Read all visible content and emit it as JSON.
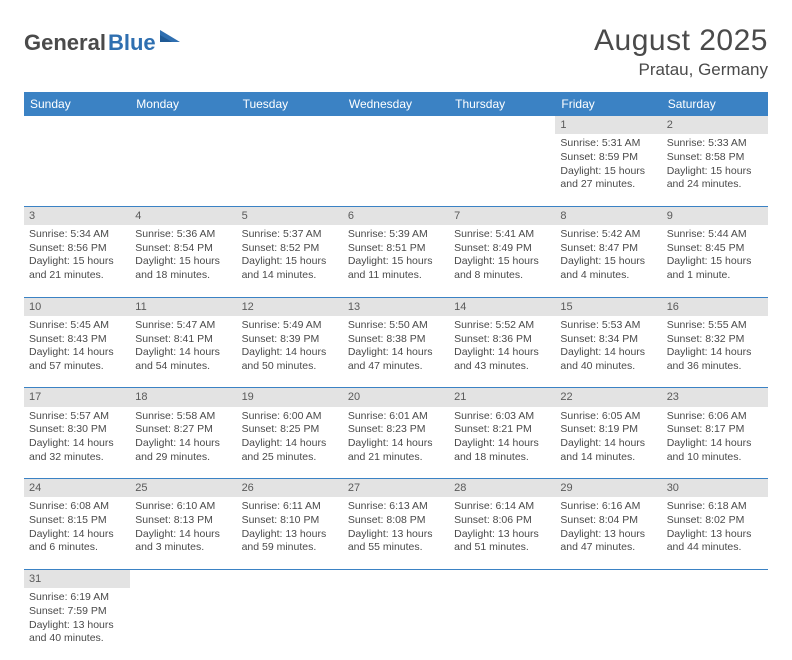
{
  "logo": {
    "part1": "General",
    "part2": "Blue"
  },
  "title": "August 2025",
  "location": "Pratau, Germany",
  "colors": {
    "header_bg": "#3b82c4",
    "header_text": "#ffffff",
    "daynum_bg": "#e3e3e3",
    "text": "#4a4a4a",
    "rule": "#3b82c4",
    "logo_gray": "#4a4a4a",
    "logo_blue": "#2f6fb0"
  },
  "weekdays": [
    "Sunday",
    "Monday",
    "Tuesday",
    "Wednesday",
    "Thursday",
    "Friday",
    "Saturday"
  ],
  "weeks": [
    [
      null,
      null,
      null,
      null,
      null,
      {
        "n": "1",
        "sr": "Sunrise: 5:31 AM",
        "ss": "Sunset: 8:59 PM",
        "d1": "Daylight: 15 hours",
        "d2": "and 27 minutes."
      },
      {
        "n": "2",
        "sr": "Sunrise: 5:33 AM",
        "ss": "Sunset: 8:58 PM",
        "d1": "Daylight: 15 hours",
        "d2": "and 24 minutes."
      }
    ],
    [
      {
        "n": "3",
        "sr": "Sunrise: 5:34 AM",
        "ss": "Sunset: 8:56 PM",
        "d1": "Daylight: 15 hours",
        "d2": "and 21 minutes."
      },
      {
        "n": "4",
        "sr": "Sunrise: 5:36 AM",
        "ss": "Sunset: 8:54 PM",
        "d1": "Daylight: 15 hours",
        "d2": "and 18 minutes."
      },
      {
        "n": "5",
        "sr": "Sunrise: 5:37 AM",
        "ss": "Sunset: 8:52 PM",
        "d1": "Daylight: 15 hours",
        "d2": "and 14 minutes."
      },
      {
        "n": "6",
        "sr": "Sunrise: 5:39 AM",
        "ss": "Sunset: 8:51 PM",
        "d1": "Daylight: 15 hours",
        "d2": "and 11 minutes."
      },
      {
        "n": "7",
        "sr": "Sunrise: 5:41 AM",
        "ss": "Sunset: 8:49 PM",
        "d1": "Daylight: 15 hours",
        "d2": "and 8 minutes."
      },
      {
        "n": "8",
        "sr": "Sunrise: 5:42 AM",
        "ss": "Sunset: 8:47 PM",
        "d1": "Daylight: 15 hours",
        "d2": "and 4 minutes."
      },
      {
        "n": "9",
        "sr": "Sunrise: 5:44 AM",
        "ss": "Sunset: 8:45 PM",
        "d1": "Daylight: 15 hours",
        "d2": "and 1 minute."
      }
    ],
    [
      {
        "n": "10",
        "sr": "Sunrise: 5:45 AM",
        "ss": "Sunset: 8:43 PM",
        "d1": "Daylight: 14 hours",
        "d2": "and 57 minutes."
      },
      {
        "n": "11",
        "sr": "Sunrise: 5:47 AM",
        "ss": "Sunset: 8:41 PM",
        "d1": "Daylight: 14 hours",
        "d2": "and 54 minutes."
      },
      {
        "n": "12",
        "sr": "Sunrise: 5:49 AM",
        "ss": "Sunset: 8:39 PM",
        "d1": "Daylight: 14 hours",
        "d2": "and 50 minutes."
      },
      {
        "n": "13",
        "sr": "Sunrise: 5:50 AM",
        "ss": "Sunset: 8:38 PM",
        "d1": "Daylight: 14 hours",
        "d2": "and 47 minutes."
      },
      {
        "n": "14",
        "sr": "Sunrise: 5:52 AM",
        "ss": "Sunset: 8:36 PM",
        "d1": "Daylight: 14 hours",
        "d2": "and 43 minutes."
      },
      {
        "n": "15",
        "sr": "Sunrise: 5:53 AM",
        "ss": "Sunset: 8:34 PM",
        "d1": "Daylight: 14 hours",
        "d2": "and 40 minutes."
      },
      {
        "n": "16",
        "sr": "Sunrise: 5:55 AM",
        "ss": "Sunset: 8:32 PM",
        "d1": "Daylight: 14 hours",
        "d2": "and 36 minutes."
      }
    ],
    [
      {
        "n": "17",
        "sr": "Sunrise: 5:57 AM",
        "ss": "Sunset: 8:30 PM",
        "d1": "Daylight: 14 hours",
        "d2": "and 32 minutes."
      },
      {
        "n": "18",
        "sr": "Sunrise: 5:58 AM",
        "ss": "Sunset: 8:27 PM",
        "d1": "Daylight: 14 hours",
        "d2": "and 29 minutes."
      },
      {
        "n": "19",
        "sr": "Sunrise: 6:00 AM",
        "ss": "Sunset: 8:25 PM",
        "d1": "Daylight: 14 hours",
        "d2": "and 25 minutes."
      },
      {
        "n": "20",
        "sr": "Sunrise: 6:01 AM",
        "ss": "Sunset: 8:23 PM",
        "d1": "Daylight: 14 hours",
        "d2": "and 21 minutes."
      },
      {
        "n": "21",
        "sr": "Sunrise: 6:03 AM",
        "ss": "Sunset: 8:21 PM",
        "d1": "Daylight: 14 hours",
        "d2": "and 18 minutes."
      },
      {
        "n": "22",
        "sr": "Sunrise: 6:05 AM",
        "ss": "Sunset: 8:19 PM",
        "d1": "Daylight: 14 hours",
        "d2": "and 14 minutes."
      },
      {
        "n": "23",
        "sr": "Sunrise: 6:06 AM",
        "ss": "Sunset: 8:17 PM",
        "d1": "Daylight: 14 hours",
        "d2": "and 10 minutes."
      }
    ],
    [
      {
        "n": "24",
        "sr": "Sunrise: 6:08 AM",
        "ss": "Sunset: 8:15 PM",
        "d1": "Daylight: 14 hours",
        "d2": "and 6 minutes."
      },
      {
        "n": "25",
        "sr": "Sunrise: 6:10 AM",
        "ss": "Sunset: 8:13 PM",
        "d1": "Daylight: 14 hours",
        "d2": "and 3 minutes."
      },
      {
        "n": "26",
        "sr": "Sunrise: 6:11 AM",
        "ss": "Sunset: 8:10 PM",
        "d1": "Daylight: 13 hours",
        "d2": "and 59 minutes."
      },
      {
        "n": "27",
        "sr": "Sunrise: 6:13 AM",
        "ss": "Sunset: 8:08 PM",
        "d1": "Daylight: 13 hours",
        "d2": "and 55 minutes."
      },
      {
        "n": "28",
        "sr": "Sunrise: 6:14 AM",
        "ss": "Sunset: 8:06 PM",
        "d1": "Daylight: 13 hours",
        "d2": "and 51 minutes."
      },
      {
        "n": "29",
        "sr": "Sunrise: 6:16 AM",
        "ss": "Sunset: 8:04 PM",
        "d1": "Daylight: 13 hours",
        "d2": "and 47 minutes."
      },
      {
        "n": "30",
        "sr": "Sunrise: 6:18 AM",
        "ss": "Sunset: 8:02 PM",
        "d1": "Daylight: 13 hours",
        "d2": "and 44 minutes."
      }
    ],
    [
      {
        "n": "31",
        "sr": "Sunrise: 6:19 AM",
        "ss": "Sunset: 7:59 PM",
        "d1": "Daylight: 13 hours",
        "d2": "and 40 minutes."
      },
      null,
      null,
      null,
      null,
      null,
      null
    ]
  ]
}
